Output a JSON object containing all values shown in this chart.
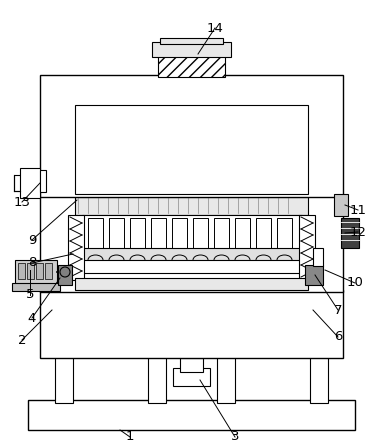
{
  "bg_color": "#ffffff",
  "lc": "#000000",
  "figsize": [
    3.83,
    4.44
  ],
  "dpi": 100,
  "plus_color": "#aaaaaa",
  "gray_light": "#f0f0f0",
  "gray_mid": "#d8d8d8",
  "gray_dark": "#aaaaaa"
}
